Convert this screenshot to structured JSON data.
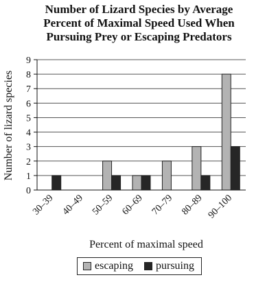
{
  "chart_data": {
    "type": "bar",
    "title_lines": [
      "Number of Lizard Species by Average",
      "Percent of Maximal Speed Used When",
      "Pursuing Prey or Escaping Predators"
    ],
    "xlabel": "Percent of maximal speed",
    "ylabel": "Number of lizard species",
    "categories": [
      "30–39",
      "40–49",
      "50–59",
      "60–69",
      "70–79",
      "80–89",
      "90–100"
    ],
    "series": [
      {
        "name": "escaping",
        "values": [
          0,
          0,
          2,
          1,
          2,
          3,
          8
        ],
        "color": "#b3b3b3"
      },
      {
        "name": "pursuing",
        "values": [
          1,
          0,
          1,
          1,
          0,
          1,
          3
        ],
        "color": "#262626"
      }
    ],
    "ylim": [
      0,
      9
    ],
    "yticks": [
      0,
      1,
      2,
      3,
      4,
      5,
      6,
      7,
      8,
      9
    ],
    "grid": true,
    "legend_position": "bottom"
  }
}
